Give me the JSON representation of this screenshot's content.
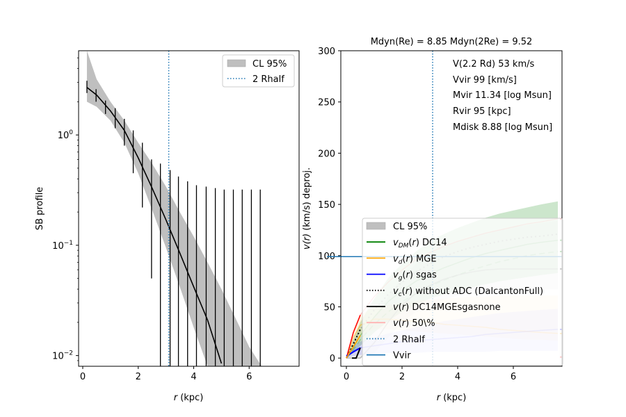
{
  "chart_data": [
    {
      "type": "line",
      "name": "surface-brightness-profile",
      "title": "",
      "xlabel_italic": "r",
      "xlabel_rest": " (kpc)",
      "ylabel": "SB profile",
      "yscale": "log",
      "xlim": [
        -0.15,
        7.8
      ],
      "ylim": [
        0.008,
        5.8
      ],
      "xticks": [
        0,
        2,
        4,
        6
      ],
      "xtick_labels": [
        "0",
        "2",
        "4",
        "6"
      ],
      "yticks": [
        1,
        0.1,
        0.01
      ],
      "ytick_labels": [
        {
          "base": "10",
          "exp": "0"
        },
        {
          "base": "10",
          "exp": "−1"
        },
        {
          "base": "10",
          "exp": "−2"
        }
      ],
      "model_curve": {
        "r": [
          0.15,
          0.5,
          1.0,
          1.5,
          2.0,
          2.5,
          3.0,
          3.5,
          4.0,
          4.5,
          5.0
        ],
        "sb": [
          2.7,
          2.3,
          1.65,
          1.1,
          0.62,
          0.33,
          0.17,
          0.085,
          0.042,
          0.021,
          0.0085
        ]
      },
      "confidence_band": {
        "label": "CL 95%",
        "r": [
          0.15,
          0.5,
          1.0,
          1.5,
          2.0,
          2.5,
          3.0,
          3.5,
          4.0,
          4.5,
          5.0,
          5.5,
          6.0,
          6.45
        ],
        "lower": [
          2.0,
          1.8,
          1.35,
          0.85,
          0.45,
          0.21,
          0.095,
          0.042,
          0.018,
          0.008,
          0.008,
          0.008,
          0.008,
          0.008
        ],
        "upper": [
          5.8,
          3.2,
          2.0,
          1.35,
          0.85,
          0.55,
          0.34,
          0.2,
          0.12,
          0.07,
          0.04,
          0.022,
          0.012,
          0.008
        ]
      },
      "data_points": {
        "r": [
          0.15,
          0.48,
          0.82,
          1.17,
          1.5,
          1.82,
          2.15,
          2.48,
          2.8,
          3.15,
          3.45,
          3.78,
          4.1,
          4.45,
          4.78,
          5.1,
          5.43,
          5.75,
          6.08,
          6.4
        ],
        "y": [
          2.7,
          2.3,
          1.8,
          1.4,
          1.0,
          0.72,
          0.5,
          0.32,
          0.22,
          0.15,
          0.1,
          0.07,
          0.05,
          0.035,
          0.024,
          0.017,
          0.012,
          0.009,
          0.008,
          0.008
        ],
        "err_lo": [
          2.4,
          2.0,
          1.55,
          1.15,
          0.8,
          0.45,
          0.22,
          0.05,
          0.008,
          0.008,
          0.008,
          0.008,
          0.008,
          0.008,
          0.008,
          0.008,
          0.008,
          0.008,
          0.008,
          0.008
        ],
        "err_hi": [
          3.1,
          2.6,
          2.05,
          1.75,
          1.4,
          1.1,
          0.85,
          0.6,
          0.55,
          0.48,
          0.42,
          0.38,
          0.35,
          0.34,
          0.33,
          0.32,
          0.32,
          0.32,
          0.32,
          0.32
        ]
      },
      "vline": {
        "label": "2 Rhalf",
        "x": 3.1
      },
      "legend": {
        "position": "upper-right",
        "entries": [
          {
            "label": "CL 95%",
            "kind": "patch",
            "color": "#bfbfbf"
          },
          {
            "label": "2 Rhalf",
            "kind": "dotted",
            "color": "#1f77b4"
          }
        ]
      }
    },
    {
      "type": "line",
      "name": "rotation-curve",
      "title": "Mdyn(Re) = 8.85  Mdyn(2Re) = 9.52",
      "xlabel_italic": "r",
      "xlabel_rest": " (kpc)",
      "ylabel_italic": "v(r)",
      "ylabel_rest": " (km/s) deproj.",
      "xlim": [
        -0.2,
        7.75
      ],
      "ylim": [
        -8,
        300
      ],
      "xticks": [
        0,
        2,
        4,
        6
      ],
      "xtick_labels": [
        "0",
        "2",
        "4",
        "6"
      ],
      "yticks": [
        0,
        50,
        100,
        150,
        200,
        250,
        300
      ],
      "ytick_labels": [
        "0",
        "50",
        "100",
        "150",
        "200",
        "250",
        "300"
      ],
      "annotations": [
        "V(2.2 Rd) 53 km/s",
        "Vvir 99 [km/s]",
        "Mvir 11.34 [log Msun]",
        "Rvir 95 [kpc]",
        "Mdisk 8.88 [log Msun]"
      ],
      "vvir_line": {
        "label": "Vvir",
        "y": 99
      },
      "vline": {
        "label": "2 Rhalf",
        "x": 3.1
      },
      "r": [
        0.0,
        0.25,
        0.5,
        1.0,
        1.5,
        2.0,
        2.5,
        3.0,
        3.5,
        4.0,
        4.5,
        5.0,
        5.5,
        6.0,
        6.5,
        7.0,
        7.6
      ],
      "series": [
        {
          "name": "v_DM(r) DC14",
          "color": "#008000",
          "values": [
            0,
            10,
            22,
            40,
            55,
            66,
            75,
            82,
            88,
            93,
            98,
            102,
            105,
            108,
            111,
            113,
            115
          ],
          "band_lo": [
            0,
            5,
            12,
            25,
            36,
            45,
            52,
            58,
            62,
            66,
            69,
            72,
            75,
            77,
            79,
            81,
            83
          ],
          "band_hi": [
            0,
            18,
            35,
            58,
            78,
            92,
            104,
            114,
            121,
            127,
            132,
            137,
            141,
            144,
            147,
            150,
            153
          ],
          "dashed_values": [
            0,
            8,
            18,
            33,
            45,
            55,
            63,
            70,
            76,
            81,
            86,
            90,
            94,
            97,
            100,
            102,
            104
          ]
        },
        {
          "name": "v_d(r) MGE",
          "color": "#ffa500",
          "values": [
            0,
            20,
            32,
            38,
            38,
            37,
            36,
            35,
            33,
            32,
            31,
            30,
            28,
            27,
            26,
            25,
            24
          ],
          "band_lo": [
            0,
            12,
            22,
            28,
            28,
            27,
            26,
            25,
            24,
            23,
            22,
            21,
            20,
            19,
            18,
            18,
            17
          ],
          "band_hi": [
            0,
            28,
            42,
            50,
            52,
            54,
            56,
            57,
            58,
            59,
            60,
            60,
            61,
            61,
            61,
            61,
            61
          ]
        },
        {
          "name": "v_g(r) sgas",
          "color": "#0000ff",
          "values": [
            0,
            7,
            10,
            12,
            14,
            16,
            17,
            18,
            19,
            20,
            21,
            23,
            24,
            25,
            26,
            27,
            28
          ],
          "band_lo": [
            0,
            2,
            3,
            4,
            5,
            5,
            5,
            6,
            6,
            6,
            6,
            6,
            7,
            7,
            7,
            7,
            7
          ],
          "band_hi": [
            0,
            12,
            16,
            20,
            24,
            27,
            30,
            33,
            36,
            38,
            40,
            42,
            44,
            45,
            46,
            47,
            48
          ]
        },
        {
          "name": "v_c(r) without ADC (DalcantonFull)",
          "color": "#000000",
          "style": "dotted",
          "values": [
            0,
            15,
            28,
            47,
            62,
            74,
            84,
            92,
            99,
            104,
            108,
            111,
            114,
            116,
            118,
            119,
            121
          ]
        },
        {
          "name": "v(r) DC14MGEsgasnone",
          "color": "#000000",
          "values": [
            0,
            0,
            0,
            15,
            35,
            52,
            63,
            71,
            77,
            81,
            84,
            86,
            87,
            87,
            87,
            87,
            87
          ],
          "band_lo": [
            0,
            0,
            0,
            5,
            20,
            35,
            45,
            52,
            57,
            61,
            64,
            66,
            67,
            67,
            67,
            67,
            67
          ],
          "band_hi": [
            0,
            8,
            20,
            40,
            60,
            78,
            92,
            102,
            109,
            114,
            118,
            122,
            125,
            128,
            130,
            132,
            134
          ]
        },
        {
          "name": "v(r) 50\\%",
          "color": "#ff0000",
          "values": [
            0,
            25,
            42,
            60,
            74,
            86,
            96,
            103,
            109,
            114,
            118,
            122,
            125,
            128,
            131,
            133,
            136
          ],
          "band_lo": [
            0,
            0,
            0,
            0,
            0,
            0,
            0,
            0,
            0,
            0,
            0,
            0,
            0,
            0,
            0,
            0,
            0
          ]
        }
      ],
      "legend": {
        "position": "lower-right",
        "entries": [
          {
            "label": "CL 95%",
            "kind": "patch",
            "color": "#bfbfbf"
          },
          {
            "label_italic": "v",
            "label_sub": "DM",
            "label_arg": "(r)",
            "label_rest": " DC14",
            "kind": "line",
            "color": "#008000"
          },
          {
            "label_italic": "v",
            "label_sub": "d",
            "label_arg": "(r)",
            "label_rest": " MGE",
            "kind": "line",
            "color": "#ffa500"
          },
          {
            "label_italic": "v",
            "label_sub": "g",
            "label_arg": "(r)",
            "label_rest": " sgas",
            "kind": "line",
            "color": "#0000ff"
          },
          {
            "label_italic": "v",
            "label_sub": "c",
            "label_arg": "(r)",
            "label_rest": " without ADC (DalcantonFull)",
            "kind": "dotted",
            "color": "#000000"
          },
          {
            "label_italic": "v",
            "label_sub": "",
            "label_arg": "(r)",
            "label_rest": " DC14MGEsgasnone",
            "kind": "line",
            "color": "#000000"
          },
          {
            "label_italic": "v",
            "label_sub": "",
            "label_arg": "(r)",
            "label_rest": " 50\\%",
            "kind": "line",
            "color": "#ffb3b3"
          },
          {
            "label": "2 Rhalf",
            "kind": "dotted",
            "color": "#1f77b4"
          },
          {
            "label": "Vvir",
            "kind": "line",
            "color": "#1f77b4"
          }
        ]
      }
    }
  ]
}
